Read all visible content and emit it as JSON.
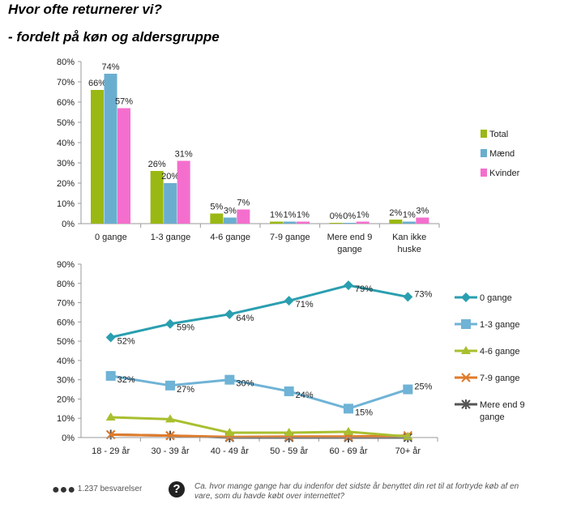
{
  "title": "Hvor ofte returnerer vi?",
  "subtitle": "- fordelt på køn og aldersgruppe",
  "chart_data": [
    {
      "type": "bar",
      "categories": [
        "0 gange",
        "1-3 gange",
        "4-6 gange",
        "7-9 gange",
        "Mere end 9 gange",
        "Kan ikke huske"
      ],
      "series": [
        {
          "name": "Total",
          "color": "#9ab813",
          "values": [
            66,
            26,
            5,
            1,
            0,
            2
          ]
        },
        {
          "name": "Mænd",
          "color": "#6aaecf",
          "values": [
            74,
            20,
            3,
            1,
            0,
            1
          ]
        },
        {
          "name": "Kvinder",
          "color": "#f46fcd",
          "values": [
            57,
            31,
            7,
            1,
            1,
            3
          ]
        }
      ],
      "yticks": [
        "0%",
        "10%",
        "20%",
        "30%",
        "40%",
        "50%",
        "60%",
        "70%",
        "80%"
      ],
      "ylim": [
        0,
        80
      ],
      "legend": "right"
    },
    {
      "type": "line",
      "categories": [
        "18 - 29 år",
        "30 - 39 år",
        "40 - 49 år",
        "50 - 59 år",
        "60 - 69 år",
        "70+ år"
      ],
      "series": [
        {
          "name": "0 gange",
          "color": "#2a9fb0",
          "marker": "diamond",
          "values": [
            52,
            59,
            64,
            71,
            79,
            73
          ],
          "labels": [
            "52%",
            "59%",
            "64%",
            "71%",
            "79%",
            "73%"
          ]
        },
        {
          "name": "1-3 gange",
          "color": "#6fb3d6",
          "marker": "square",
          "values": [
            32,
            27,
            30,
            24,
            15,
            25
          ],
          "labels": [
            "32%",
            "27%",
            "30%",
            "24%",
            "15%",
            "25%"
          ]
        },
        {
          "name": "4-6 gange",
          "color": "#a9bf2e",
          "marker": "triangle",
          "values": [
            10.5,
            9.5,
            2.5,
            2.5,
            3,
            0.5
          ]
        },
        {
          "name": "7-9 gange",
          "color": "#e07b2a",
          "marker": "x",
          "values": [
            1.5,
            1,
            0.3,
            0.5,
            0.5,
            1
          ]
        },
        {
          "name": "Mere end 9 gange",
          "color": "#555555",
          "marker": "star",
          "values": [
            1.5,
            1,
            0,
            0,
            0,
            0
          ]
        }
      ],
      "yticks": [
        "0%",
        "10%",
        "20%",
        "30%",
        "40%",
        "50%",
        "60%",
        "70%",
        "80%",
        "90%"
      ],
      "ylim": [
        0,
        90
      ],
      "legend": "right"
    }
  ],
  "footer": {
    "responses": "1.237 besvarelser",
    "question": "Ca. hvor mange gange har du indenfor det sidste år benyttet din ret til at fortryde køb af en vare,  som du havde købt over internettet?"
  }
}
